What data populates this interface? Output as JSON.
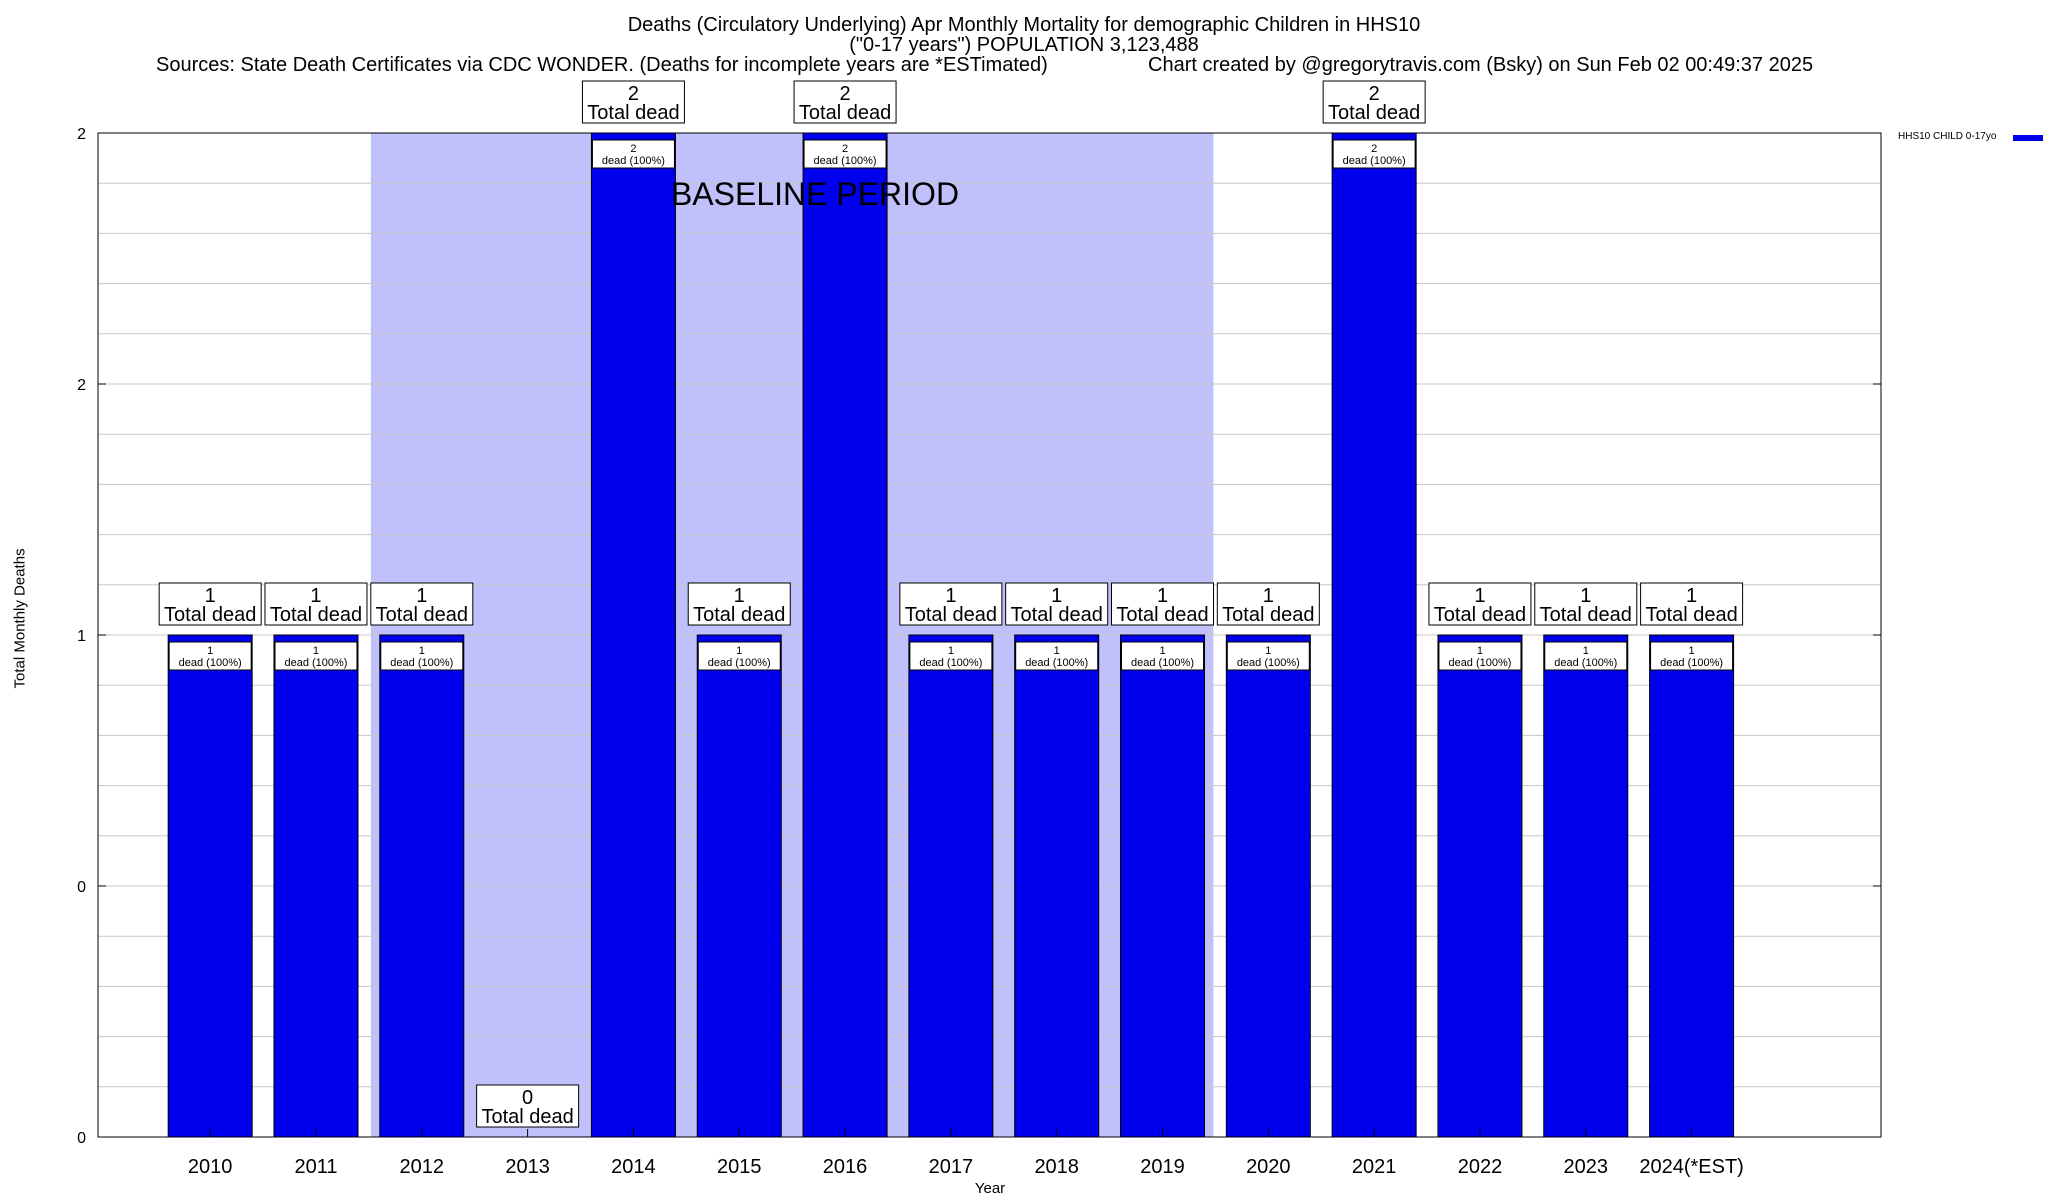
{
  "chart_data": {
    "type": "bar",
    "title": "Deaths (Circulatory Underlying) Apr Monthly Mortality for demographic Children in HHS10",
    "subtitle": "(\"0-17 years\") POPULATION 3,123,488",
    "source_text": "Sources: State Death Certificates via CDC WONDER. (Deaths for incomplete years are *ESTimated)",
    "credit_text": "Chart created by @gregorytravis.com (Bsky) on Sun Feb 02 00:49:37 2025",
    "xlabel": "Year",
    "ylabel": "Total Monthly Deaths",
    "ylim": [
      0,
      2
    ],
    "yticks": [
      {
        "value": 0,
        "label": "0"
      },
      {
        "value": 0.5,
        "label": "0"
      },
      {
        "value": 1,
        "label": "1"
      },
      {
        "value": 1.5,
        "label": "2"
      },
      {
        "value": 2,
        "label": "2"
      }
    ],
    "categories": [
      "2010",
      "2011",
      "2012",
      "2013",
      "2014",
      "2015",
      "2016",
      "2017",
      "2018",
      "2019",
      "2020",
      "2021",
      "2022",
      "2023",
      "2024(*EST)"
    ],
    "series": [
      {
        "name": "HHS10 CHILD 0-17yo",
        "color": "#0000ee",
        "values": [
          1,
          1,
          1,
          0,
          2,
          1,
          2,
          1,
          1,
          1,
          1,
          2,
          1,
          1,
          1
        ]
      }
    ],
    "total_labels": [
      "1",
      "1",
      "1",
      "0",
      "2",
      "1",
      "2",
      "1",
      "1",
      "1",
      "1",
      "2",
      "1",
      "1",
      "1"
    ],
    "total_suffix": "Total dead",
    "inner_labels": [
      "1",
      "1",
      "1",
      "",
      "2",
      "1",
      "2",
      "1",
      "1",
      "1",
      "1",
      "2",
      "1",
      "1",
      "1"
    ],
    "inner_suffix": "dead (100%)",
    "baseline": {
      "label": "BASELINE PERIOD",
      "start": "2012",
      "end": "2019",
      "color": "#c0c0fa"
    },
    "grid": true,
    "legend_position": "top-right"
  }
}
